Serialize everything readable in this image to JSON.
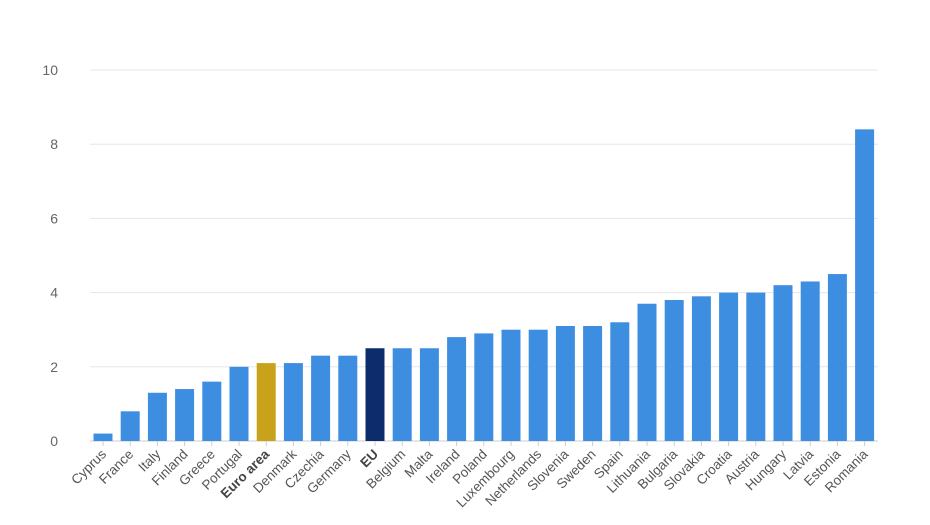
{
  "chart_data": {
    "type": "bar",
    "title": "",
    "xlabel": "",
    "ylabel": "",
    "ylim": [
      0,
      10
    ],
    "yticks": [
      0,
      2,
      4,
      6,
      8,
      10
    ],
    "grid": true,
    "categories": [
      "Cyprus",
      "France",
      "Italy",
      "Finland",
      "Greece",
      "Portugal",
      "Euro area",
      "Denmark",
      "Czechia",
      "Germany",
      "EU",
      "Belgium",
      "Malta",
      "Ireland",
      "Poland",
      "Luxembourg",
      "Netherlands",
      "Slovenia",
      "Sweden",
      "Spain",
      "Lithuania",
      "Bulgaria",
      "Slovakia",
      "Croatia",
      "Austria",
      "Hungary",
      "Latvia",
      "Estonia",
      "Romania"
    ],
    "values": [
      0.2,
      0.8,
      1.3,
      1.4,
      1.6,
      2.0,
      2.1,
      2.1,
      2.3,
      2.3,
      2.5,
      2.5,
      2.5,
      2.8,
      2.9,
      3.0,
      3.0,
      3.1,
      3.1,
      3.2,
      3.7,
      3.8,
      3.9,
      4.0,
      4.0,
      4.2,
      4.3,
      4.5,
      8.4
    ],
    "highlight": {
      "Euro area": "#c9a21c",
      "EU": "#0d2c6c"
    },
    "bold_categories": [
      "Euro area",
      "EU"
    ],
    "colors": {
      "default_bar": "#3d8ee0"
    }
  }
}
